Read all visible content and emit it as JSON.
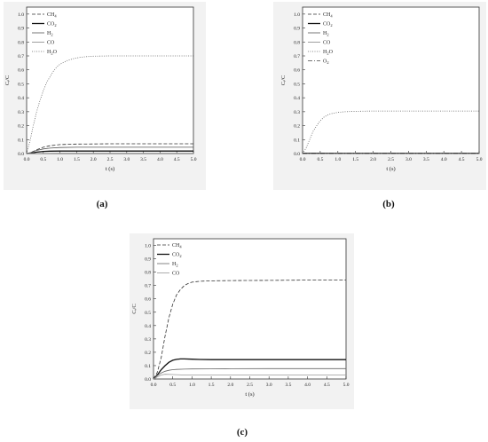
{
  "panels": [
    {
      "caption": "(a)",
      "chart_data": {
        "type": "line",
        "xlabel": "t (s)",
        "ylabel": "Cᵢ/C",
        "xlim": [
          0,
          5
        ],
        "ylim": [
          0,
          1.05
        ],
        "xticks": [
          "0.0",
          "0.5",
          "1.0",
          "1.5",
          "2.0",
          "2.5",
          "3.0",
          "3.5",
          "4.0",
          "4.5",
          "5.0"
        ],
        "yticks": [
          "0.0",
          "0.1",
          "0.2",
          "0.3",
          "0.4",
          "0.5",
          "0.6",
          "0.7",
          "0.8",
          "0.9",
          "1.0"
        ],
        "legend_position": "top-left",
        "series": [
          {
            "name": "CH4",
            "style": "dashed",
            "color": "#333333",
            "x": [
              0,
              0.1,
              0.2,
              0.3,
              0.5,
              0.7,
              1.0,
              1.5,
              2.0,
              2.5,
              3.0,
              4.0,
              5.0
            ],
            "y": [
              0,
              0.005,
              0.015,
              0.027,
              0.045,
              0.056,
              0.064,
              0.068,
              0.069,
              0.07,
              0.07,
              0.07,
              0.07
            ]
          },
          {
            "name": "CO2",
            "style": "solid-bold",
            "color": "#111111",
            "x": [
              0,
              0.1,
              0.2,
              0.3,
              0.5,
              0.7,
              1.0,
              1.5,
              2.0,
              3.0,
              5.0
            ],
            "y": [
              0,
              0.002,
              0.006,
              0.01,
              0.015,
              0.017,
              0.018,
              0.018,
              0.018,
              0.018,
              0.018
            ]
          },
          {
            "name": "H2",
            "style": "solid",
            "color": "#555555",
            "x": [
              0,
              0.1,
              0.2,
              0.3,
              0.5,
              0.7,
              1.0,
              1.5,
              2.0,
              3.0,
              5.0
            ],
            "y": [
              0,
              0.005,
              0.014,
              0.022,
              0.033,
              0.039,
              0.043,
              0.045,
              0.045,
              0.045,
              0.045
            ]
          },
          {
            "name": "CO",
            "style": "solid",
            "color": "#888888",
            "x": [
              0,
              0.5,
              1.0,
              2.0,
              3.0,
              5.0
            ],
            "y": [
              0,
              0.001,
              0.002,
              0.002,
              0.002,
              0.002
            ]
          },
          {
            "name": "H2O",
            "style": "dotted",
            "color": "#666666",
            "x": [
              0,
              0.1,
              0.2,
              0.3,
              0.4,
              0.5,
              0.6,
              0.7,
              0.8,
              0.9,
              1.0,
              1.2,
              1.4,
              1.6,
              1.8,
              2.0,
              2.5,
              3.0,
              4.0,
              5.0
            ],
            "y": [
              0,
              0.09,
              0.2,
              0.3,
              0.38,
              0.45,
              0.51,
              0.55,
              0.59,
              0.62,
              0.64,
              0.665,
              0.68,
              0.69,
              0.695,
              0.698,
              0.7,
              0.7,
              0.7,
              0.7
            ]
          }
        ]
      }
    },
    {
      "caption": "(b)",
      "chart_data": {
        "type": "line",
        "xlabel": "t (s)",
        "ylabel": "Cᵢ/C",
        "xlim": [
          0,
          5
        ],
        "ylim": [
          0,
          1.05
        ],
        "xticks": [
          "0.0",
          "0.5",
          "1.0",
          "1.5",
          "2.0",
          "2.5",
          "3.0",
          "3.5",
          "4.0",
          "4.5",
          "5.0"
        ],
        "yticks": [
          "0.0",
          "0.1",
          "0.2",
          "0.3",
          "0.4",
          "0.5",
          "0.6",
          "0.7",
          "0.8",
          "0.9",
          "1.0"
        ],
        "legend_position": "top-left",
        "series": [
          {
            "name": "CH4",
            "style": "dashed",
            "color": "#333333",
            "x": [
              0,
              1.0,
              2.0,
              3.0,
              4.0,
              5.0
            ],
            "y": [
              0,
              0.001,
              0.002,
              0.002,
              0.002,
              0.002
            ]
          },
          {
            "name": "CO2",
            "style": "solid-bold",
            "color": "#111111",
            "x": [
              0,
              1.0,
              2.0,
              3.0,
              4.0,
              5.0
            ],
            "y": [
              0.002,
              0.002,
              0.002,
              0.002,
              0.002,
              0.002
            ]
          },
          {
            "name": "H2",
            "style": "solid",
            "color": "#555555",
            "x": [
              0,
              1.0,
              2.0,
              3.0,
              4.0,
              5.0
            ],
            "y": [
              0,
              0.001,
              0.001,
              0.001,
              0.001,
              0.001
            ]
          },
          {
            "name": "CO",
            "style": "solid",
            "color": "#888888",
            "x": [
              0,
              1.0,
              2.0,
              3.0,
              4.0,
              5.0
            ],
            "y": [
              0,
              0,
              0,
              0,
              0,
              0
            ]
          },
          {
            "name": "H2O",
            "style": "dotted",
            "color": "#666666",
            "x": [
              0,
              0.1,
              0.2,
              0.3,
              0.4,
              0.5,
              0.6,
              0.7,
              0.8,
              1.0,
              1.2,
              1.5,
              2.0,
              3.0,
              4.0,
              5.0
            ],
            "y": [
              0,
              0.04,
              0.1,
              0.16,
              0.2,
              0.235,
              0.26,
              0.275,
              0.285,
              0.295,
              0.3,
              0.303,
              0.305,
              0.305,
              0.305,
              0.305
            ]
          },
          {
            "name": "O2",
            "style": "dashdot",
            "color": "#444444",
            "x": [
              0,
              1.0,
              2.0,
              3.0,
              4.0,
              5.0
            ],
            "y": [
              0,
              0,
              0,
              0,
              0,
              0
            ]
          }
        ]
      }
    },
    {
      "caption": "(c)",
      "chart_data": {
        "type": "line",
        "xlabel": "t (s)",
        "ylabel": "Cᵢ/C",
        "xlim": [
          0,
          5
        ],
        "ylim": [
          0,
          1.05
        ],
        "xticks": [
          "0.0",
          "0.5",
          "1.0",
          "1.5",
          "2.0",
          "2.5",
          "3.0",
          "3.5",
          "4.0",
          "4.5",
          "5.0"
        ],
        "yticks": [
          "0.0",
          "0.1",
          "0.2",
          "0.3",
          "0.4",
          "0.5",
          "0.6",
          "0.7",
          "0.8",
          "0.9",
          "1.0"
        ],
        "legend_position": "top-left",
        "series": [
          {
            "name": "CH4",
            "style": "dashed",
            "color": "#333333",
            "x": [
              0,
              0.1,
              0.2,
              0.3,
              0.4,
              0.5,
              0.6,
              0.7,
              0.8,
              0.9,
              1.0,
              1.2,
              1.5,
              2.0,
              3.0,
              4.0,
              5.0
            ],
            "y": [
              0,
              0.05,
              0.16,
              0.32,
              0.46,
              0.56,
              0.63,
              0.67,
              0.7,
              0.715,
              0.725,
              0.732,
              0.735,
              0.737,
              0.738,
              0.74,
              0.74
            ]
          },
          {
            "name": "CO2",
            "style": "solid-bold",
            "color": "#111111",
            "x": [
              0,
              0.1,
              0.2,
              0.3,
              0.4,
              0.5,
              0.6,
              0.7,
              0.8,
              1.0,
              1.2,
              1.5,
              2.0,
              3.0,
              4.0,
              5.0
            ],
            "y": [
              0,
              0.03,
              0.07,
              0.1,
              0.125,
              0.14,
              0.147,
              0.15,
              0.15,
              0.148,
              0.146,
              0.145,
              0.145,
              0.145,
              0.145,
              0.145
            ]
          },
          {
            "name": "H2",
            "style": "solid",
            "color": "#666666",
            "x": [
              0,
              0.1,
              0.2,
              0.3,
              0.4,
              0.5,
              0.6,
              0.8,
              1.0,
              1.5,
              2.0,
              3.0,
              4.0,
              5.0
            ],
            "y": [
              0,
              0.025,
              0.045,
              0.058,
              0.065,
              0.07,
              0.072,
              0.074,
              0.075,
              0.076,
              0.077,
              0.078,
              0.078,
              0.078
            ]
          },
          {
            "name": "CO",
            "style": "solid",
            "color": "#999999",
            "x": [
              0,
              0.1,
              0.2,
              0.3,
              0.5,
              0.8,
              1.0,
              2.0,
              3.0,
              5.0
            ],
            "y": [
              0,
              0.015,
              0.03,
              0.035,
              0.033,
              0.03,
              0.03,
              0.03,
              0.03,
              0.03
            ]
          }
        ]
      }
    }
  ]
}
